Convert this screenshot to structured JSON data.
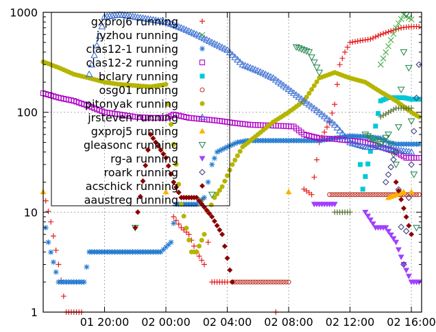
{
  "chart_data": {
    "type": "scatter",
    "title": "",
    "xlabel": "",
    "ylabel": "",
    "y_scale": "log",
    "ylim": [
      1,
      1000
    ],
    "xlim": [
      "01 16:00",
      "02 16:40"
    ],
    "grid": true,
    "legend_position": "top-left",
    "y_ticks": [
      {
        "value": 1,
        "label": "1"
      },
      {
        "value": 10,
        "label": "10"
      },
      {
        "value": 100,
        "label": "100"
      },
      {
        "value": 1000,
        "label": "1000"
      }
    ],
    "x_ticks": [
      {
        "value": "01 20:00",
        "label": "01 20:00"
      },
      {
        "value": "02 00:00",
        "label": "02 00:00"
      },
      {
        "value": "02 04:00",
        "label": "02 04:00"
      },
      {
        "value": "02 08:00",
        "label": "02 08:00"
      },
      {
        "value": "02 12:00",
        "label": "02 12:00"
      },
      {
        "value": "02 16:00",
        "label": "02 16:00"
      }
    ],
    "series": [
      {
        "name": "gxproj6 running",
        "marker": "plus",
        "color": "#e41a1c",
        "points": [
          [
            "01 16:10",
            13
          ],
          [
            "01 16:30",
            8
          ],
          [
            "01 17:00",
            3
          ],
          [
            "01 17:30",
            1
          ],
          [
            "01 18:00",
            1
          ],
          [
            "01 18:30",
            1
          ],
          [
            "02 00:30",
            9
          ],
          [
            "02 01:00",
            7
          ],
          [
            "02 01:30",
            6
          ],
          [
            "02 02:00",
            4
          ],
          [
            "02 02:30",
            3
          ],
          [
            "02 02:45",
            5
          ],
          [
            "02 03:00",
            2
          ],
          [
            "02 03:20",
            2
          ],
          [
            "02 03:40",
            2
          ],
          [
            "02 04:00",
            2
          ],
          [
            "02 07:10",
            1
          ],
          [
            "02 09:00",
            17
          ],
          [
            "02 09:30",
            15
          ],
          [
            "02 10:00",
            50
          ],
          [
            "02 10:40",
            80
          ],
          [
            "02 11:00",
            120
          ],
          [
            "02 11:20",
            300
          ],
          [
            "02 11:40",
            400
          ],
          [
            "02 12:00",
            500
          ],
          [
            "02 12:40",
            520
          ],
          [
            "02 13:20",
            540
          ],
          [
            "02 14:00",
            600
          ],
          [
            "02 14:40",
            650
          ],
          [
            "02 15:20",
            700
          ],
          [
            "02 16:00",
            720
          ],
          [
            "02 16:30",
            720
          ]
        ]
      },
      {
        "name": "jyzhou running",
        "marker": "cross",
        "color": "#4daf4a",
        "points": [
          [
            "02 14:00",
            300
          ],
          [
            "02 15:00",
            700
          ],
          [
            "02 15:30",
            950
          ],
          [
            "02 16:00",
            850
          ]
        ]
      },
      {
        "name": "clas12-1 running",
        "marker": "star",
        "color": "#1f78d0",
        "points": [
          [
            "01 16:10",
            7
          ],
          [
            "01 16:20",
            5
          ],
          [
            "01 17:00",
            2
          ],
          [
            "01 17:20",
            2
          ],
          [
            "01 17:40",
            2
          ],
          [
            "01 18:00",
            2
          ],
          [
            "01 18:20",
            2
          ],
          [
            "01 18:40",
            2
          ],
          [
            "01 19:00",
            4
          ],
          [
            "01 19:40",
            4
          ],
          [
            "01 20:20",
            4
          ],
          [
            "01 21:00",
            4
          ],
          [
            "01 21:40",
            4
          ],
          [
            "01 22:20",
            4
          ],
          [
            "01 23:00",
            4
          ],
          [
            "01 23:40",
            4
          ],
          [
            "02 00:20",
            5
          ],
          [
            "02 00:40",
            12
          ],
          [
            "02 01:20",
            12
          ],
          [
            "02 02:00",
            12
          ],
          [
            "02 02:30",
            14
          ],
          [
            "02 02:45",
            20
          ],
          [
            "02 03:00",
            30
          ],
          [
            "02 03:20",
            40
          ],
          [
            "02 04:00",
            45
          ],
          [
            "02 04:40",
            50
          ],
          [
            "02 05:20",
            52
          ],
          [
            "02 06:00",
            52
          ],
          [
            "02 07:00",
            52
          ],
          [
            "02 08:00",
            52
          ],
          [
            "02 09:00",
            52
          ],
          [
            "02 10:00",
            52
          ],
          [
            "02 11:00",
            55
          ],
          [
            "02 12:00",
            58
          ],
          [
            "02 13:00",
            57
          ],
          [
            "02 14:00",
            55
          ],
          [
            "02 14:30",
            50
          ],
          [
            "02 15:00",
            48
          ],
          [
            "02 15:30",
            48
          ],
          [
            "02 16:00",
            48
          ],
          [
            "02 16:30",
            48
          ]
        ]
      },
      {
        "name": "clas12-2 running",
        "marker": "square-open",
        "color": "#b000c8",
        "points": [
          [
            "01 16:00",
            155
          ],
          [
            "01 17:00",
            140
          ],
          [
            "01 18:00",
            130
          ],
          [
            "01 19:00",
            115
          ],
          [
            "01 20:00",
            100
          ],
          [
            "01 21:00",
            95
          ],
          [
            "01 22:00",
            90
          ],
          [
            "01 23:00",
            88
          ],
          [
            "02 00:00",
            88
          ],
          [
            "02 00:30",
            95
          ],
          [
            "02 01:30",
            88
          ],
          [
            "02 02:30",
            85
          ],
          [
            "02 03:30",
            82
          ],
          [
            "02 04:30",
            78
          ],
          [
            "02 05:30",
            75
          ],
          [
            "02 06:30",
            74
          ],
          [
            "02 07:30",
            73
          ],
          [
            "02 08:20",
            72
          ],
          [
            "02 09:00",
            60
          ],
          [
            "02 10:00",
            55
          ],
          [
            "02 11:00",
            54
          ],
          [
            "02 12:00",
            52
          ],
          [
            "02 13:00",
            50
          ],
          [
            "02 14:00",
            45
          ],
          [
            "02 15:00",
            40
          ],
          [
            "02 15:40",
            35
          ],
          [
            "02 16:30",
            35
          ]
        ]
      },
      {
        "name": "bclary running",
        "marker": "square-filled",
        "color": "#00c8d8",
        "points": [
          [
            "02 12:40",
            30
          ],
          [
            "02 12:50",
            17
          ],
          [
            "02 14:00",
            130
          ],
          [
            "02 14:30",
            140
          ],
          [
            "02 15:00",
            140
          ],
          [
            "02 15:30",
            140
          ],
          [
            "02 16:00",
            135
          ],
          [
            "02 16:30",
            135
          ]
        ]
      },
      {
        "name": "osg01 running",
        "marker": "circle-open",
        "color": "#c0392b",
        "points": [
          [
            "02 04:20",
            2
          ],
          [
            "02 05:00",
            2
          ],
          [
            "02 05:40",
            2
          ],
          [
            "02 06:20",
            2
          ],
          [
            "02 07:00",
            2
          ],
          [
            "02 08:00",
            2
          ],
          [
            "02 10:40",
            15
          ],
          [
            "02 11:20",
            15
          ],
          [
            "02 12:00",
            15
          ],
          [
            "02 13:00",
            15
          ],
          [
            "02 14:00",
            15
          ],
          [
            "02 15:00",
            15
          ],
          [
            "02 16:00",
            15
          ],
          [
            "02 16:30",
            15
          ]
        ]
      },
      {
        "name": "pitonyak running",
        "marker": "circle-filled",
        "color": "#b5b500",
        "points": [
          [
            "01 16:00",
            320
          ],
          [
            "01 17:00",
            280
          ],
          [
            "01 18:00",
            240
          ],
          [
            "01 19:00",
            220
          ],
          [
            "01 20:00",
            200
          ],
          [
            "01 21:00",
            190
          ],
          [
            "01 22:00",
            185
          ],
          [
            "01 23:00",
            180
          ],
          [
            "02 00:00",
            190
          ],
          [
            "02 01:00",
            12
          ],
          [
            "02 01:40",
            4
          ],
          [
            "02 02:00",
            4
          ],
          [
            "02 02:30",
            6
          ],
          [
            "02 02:45",
            10
          ],
          [
            "02 03:10",
            14
          ],
          [
            "02 03:40",
            18
          ],
          [
            "02 04:20",
            30
          ],
          [
            "02 05:00",
            45
          ],
          [
            "02 06:00",
            60
          ],
          [
            "02 07:00",
            80
          ],
          [
            "02 08:00",
            100
          ],
          [
            "02 09:00",
            130
          ],
          [
            "02 10:00",
            220
          ],
          [
            "02 11:00",
            250
          ],
          [
            "02 12:00",
            220
          ],
          [
            "02 13:00",
            200
          ],
          [
            "02 14:00",
            160
          ],
          [
            "02 15:00",
            130
          ],
          [
            "02 16:00",
            100
          ],
          [
            "02 16:30",
            90
          ]
        ]
      },
      {
        "name": "jrsteven running",
        "marker": "triangle-open",
        "color": "#3b6fd4",
        "points": [
          [
            "01 19:00",
            240
          ],
          [
            "01 20:00",
            900
          ],
          [
            "01 21:00",
            950
          ],
          [
            "01 22:00",
            900
          ],
          [
            "01 23:00",
            850
          ],
          [
            "02 00:00",
            800
          ],
          [
            "02 01:00",
            700
          ],
          [
            "02 02:00",
            600
          ],
          [
            "02 03:00",
            500
          ],
          [
            "02 04:00",
            420
          ],
          [
            "02 05:00",
            300
          ],
          [
            "02 06:00",
            260
          ],
          [
            "02 07:00",
            220
          ],
          [
            "02 08:00",
            170
          ],
          [
            "02 09:00",
            130
          ],
          [
            "02 10:00",
            100
          ],
          [
            "02 11:00",
            75
          ],
          [
            "02 12:00",
            50
          ],
          [
            "02 13:00",
            45
          ],
          [
            "02 14:00",
            45
          ],
          [
            "02 15:00",
            42
          ],
          [
            "02 16:00",
            40
          ]
        ]
      },
      {
        "name": "gxproj5 running",
        "marker": "triangle-filled",
        "color": "#ffb000",
        "points": [
          [
            "01 16:00",
            16
          ],
          [
            "02 00:00",
            16
          ],
          [
            "02 08:00",
            16
          ],
          [
            "02 16:00",
            16
          ],
          [
            "02 14:30",
            14
          ],
          [
            "02 15:30",
            16
          ]
        ]
      },
      {
        "name": "gleasonc running",
        "marker": "triangle-down-open",
        "color": "#2e8b57",
        "points": [
          [
            "01 22:00",
            7
          ],
          [
            "02 03:00",
            15
          ],
          [
            "02 08:30",
            450
          ],
          [
            "02 09:20",
            400
          ],
          [
            "02 10:00",
            250
          ],
          [
            "02 13:00",
            60
          ],
          [
            "02 14:00",
            48
          ],
          [
            "02 14:30",
            60
          ],
          [
            "02 15:00",
            30
          ],
          [
            "02 15:40",
            950
          ],
          [
            "02 16:20",
            7
          ]
        ]
      },
      {
        "name": "rg-a running",
        "marker": "triangle-down-filled",
        "color": "#a040ff",
        "points": [
          [
            "02 09:40",
            12
          ],
          [
            "02 10:20",
            12
          ],
          [
            "02 11:00",
            12
          ],
          [
            "02 13:00",
            10
          ],
          [
            "02 13:40",
            7
          ],
          [
            "02 14:20",
            7
          ],
          [
            "02 15:00",
            5
          ],
          [
            "02 15:30",
            3
          ],
          [
            "02 16:00",
            2
          ],
          [
            "02 16:30",
            2
          ]
        ]
      },
      {
        "name": "roark running",
        "marker": "diamond-open",
        "color": "#404080",
        "points": [
          [
            "02 14:20",
            20
          ],
          [
            "02 15:00",
            40
          ],
          [
            "02 15:30",
            3
          ],
          [
            "02 16:30",
            300
          ]
        ]
      },
      {
        "name": "acschick running",
        "marker": "diamond-filled",
        "color": "#8b0000",
        "points": [
          [
            "01 22:00",
            7
          ],
          [
            "01 23:00",
            60
          ],
          [
            "02 00:00",
            35
          ],
          [
            "02 00:30",
            20
          ],
          [
            "02 01:00",
            14
          ],
          [
            "02 02:00",
            14
          ],
          [
            "02 03:00",
            9
          ],
          [
            "02 03:40",
            6
          ],
          [
            "02 04:20",
            2
          ],
          [
            "02 15:00",
            20
          ],
          [
            "02 16:00",
            6
          ]
        ]
      },
      {
        "name": "aaustreg running",
        "marker": "plus-dark",
        "color": "#507030",
        "points": [
          [
            "02 11:00",
            10
          ],
          [
            "02 11:30",
            10
          ],
          [
            "02 12:00",
            10
          ],
          [
            "02 14:00",
            90
          ],
          [
            "02 15:00",
            110
          ],
          [
            "02 16:00",
            110
          ]
        ]
      }
    ]
  }
}
